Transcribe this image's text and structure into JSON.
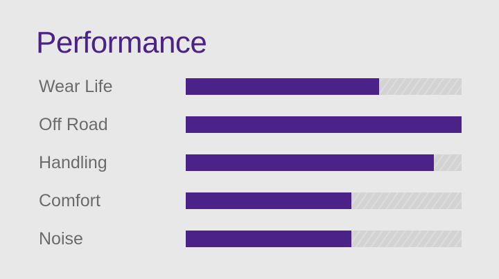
{
  "chart_data": {
    "type": "bar",
    "orientation": "horizontal",
    "title": "Performance",
    "categories": [
      "Wear Life",
      "Off Road",
      "Handling",
      "Comfort",
      "Noise"
    ],
    "values": [
      0.7,
      1.0,
      0.9,
      0.6,
      0.6
    ],
    "xlim": [
      0,
      1
    ],
    "xlabel": "",
    "ylabel": "",
    "grid": false,
    "legend": null,
    "colors": {
      "fill": "#4a2288",
      "track": "#d3d3d3",
      "title": "#4a2288",
      "label": "#6b6b6b",
      "background": "#e8e8e8"
    }
  },
  "title": "Performance",
  "rows": [
    {
      "label": "Wear Life",
      "value": 0.7
    },
    {
      "label": "Off Road",
      "value": 1.0
    },
    {
      "label": "Handling",
      "value": 0.9
    },
    {
      "label": "Comfort",
      "value": 0.6
    },
    {
      "label": "Noise",
      "value": 0.6
    }
  ]
}
